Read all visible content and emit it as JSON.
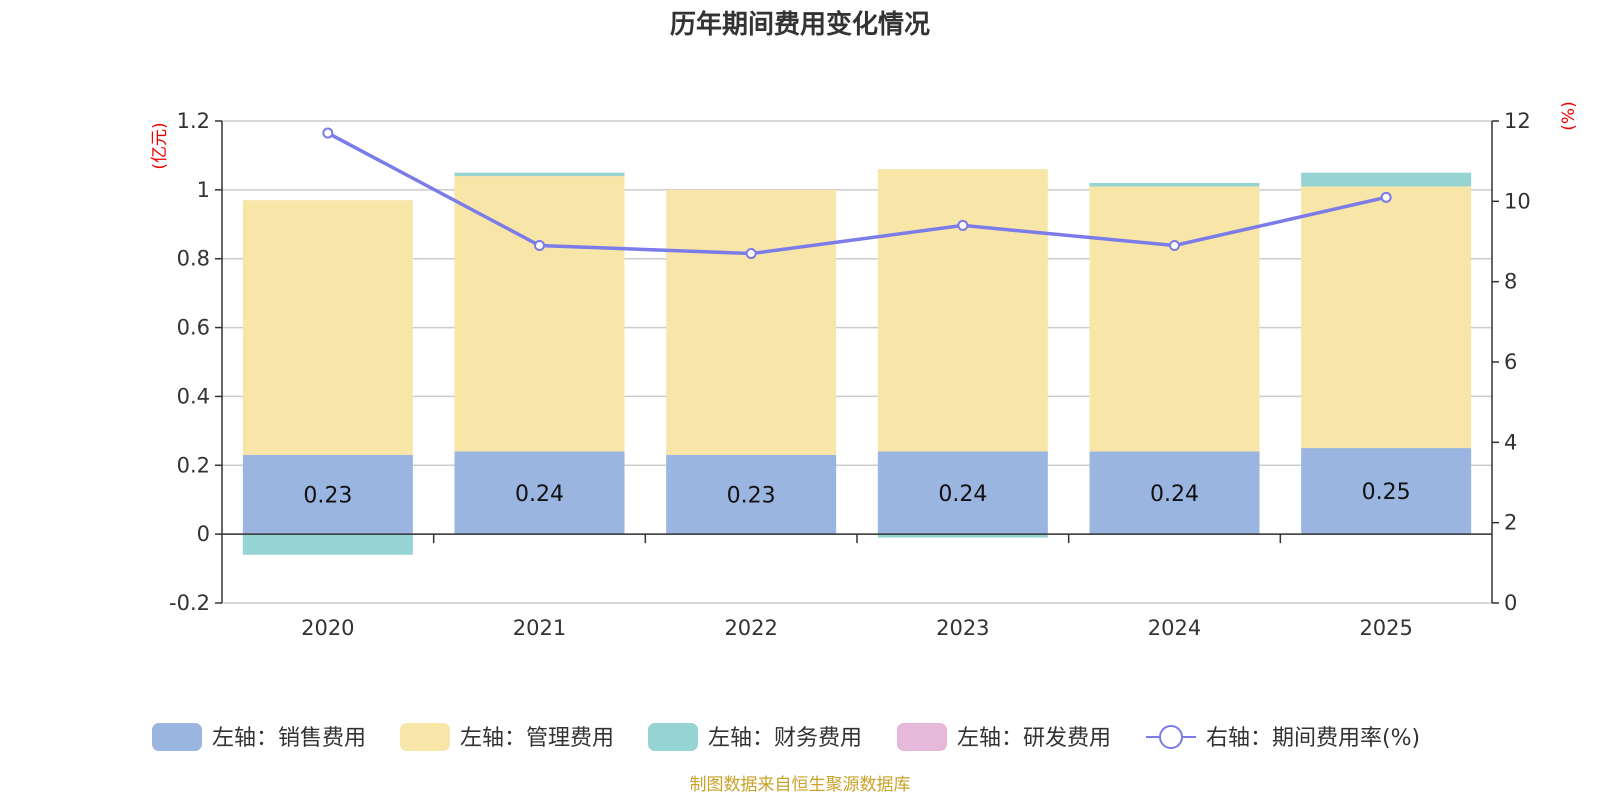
{
  "chart_data": {
    "type": "bar",
    "title": "历年期间费用变化情况",
    "categories": [
      "2020",
      "2021",
      "2022",
      "2023",
      "2024",
      "2025"
    ],
    "series": [
      {
        "name": "左轴：销售费用",
        "axis": "left",
        "stack": "cost",
        "color": "#9ab5e0",
        "values": [
          0.23,
          0.24,
          0.23,
          0.24,
          0.24,
          0.25
        ],
        "labels": [
          "0.23",
          "0.24",
          "0.23",
          "0.24",
          "0.24",
          "0.25"
        ]
      },
      {
        "name": "左轴：管理费用",
        "axis": "left",
        "stack": "cost",
        "color": "#f7e6a8",
        "values": [
          0.74,
          0.8,
          0.77,
          0.82,
          0.77,
          0.76
        ]
      },
      {
        "name": "左轴：财务费用",
        "axis": "left",
        "stack": "cost",
        "color": "#96d3d3",
        "values": [
          -0.06,
          0.01,
          0.0,
          -0.01,
          0.01,
          0.04
        ]
      },
      {
        "name": "左轴：研发费用",
        "axis": "left",
        "stack": "cost",
        "color": "#e6b8d9",
        "values": [
          0,
          0,
          0,
          0,
          0,
          0
        ]
      },
      {
        "name": "右轴：期间费用率(%)",
        "axis": "right",
        "type": "line",
        "color": "#7b7bea",
        "values": [
          11.7,
          8.9,
          8.7,
          9.4,
          8.9,
          10.1
        ]
      }
    ],
    "left_axis": {
      "label": "(亿元)",
      "ylim": [
        -0.2,
        1.2
      ],
      "ticks": [
        "-0.2",
        "0",
        "0.2",
        "0.4",
        "0.6",
        "0.8",
        "1",
        "1.2"
      ]
    },
    "right_axis": {
      "label": "(%)",
      "ylim": [
        0,
        12
      ],
      "ticks": [
        "0",
        "2",
        "4",
        "6",
        "8",
        "10",
        "12"
      ]
    },
    "grid": true,
    "legend_position": "bottom"
  },
  "source_note": "制图数据来自恒生聚源数据库"
}
